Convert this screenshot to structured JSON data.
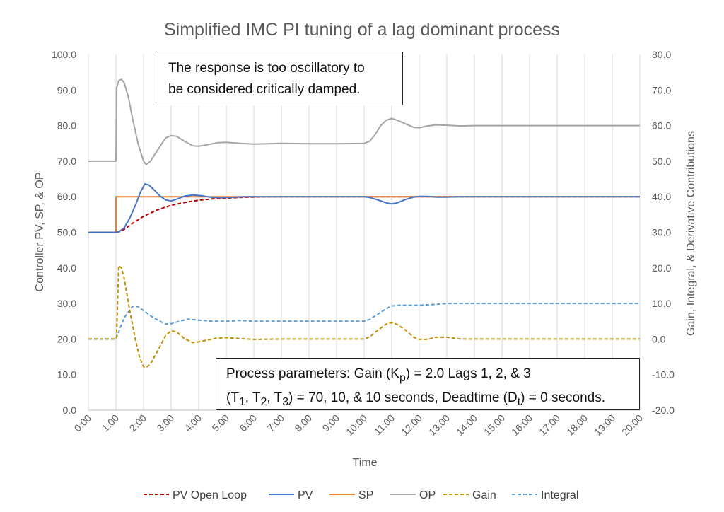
{
  "chart_data": {
    "type": "line",
    "title": "Simplified IMC PI tuning of a lag dominant process",
    "xlabel": "Time",
    "ylabel_left": "Controller PV, SP, & OP",
    "ylabel_right": "Gain, Integral, & Derivative Contributions",
    "xlim": [
      0,
      20
    ],
    "ylim_left": [
      0,
      100
    ],
    "ylim_right": [
      -20,
      80
    ],
    "grid": "vertical",
    "legend_position": "bottom",
    "x_ticks": [
      "0:00",
      "1:00",
      "2:00",
      "3:00",
      "4:00",
      "5:00",
      "6:00",
      "7:00",
      "8:00",
      "9:00",
      "10:00",
      "11:00",
      "12:00",
      "13:00",
      "14:00",
      "15:00",
      "16:00",
      "17:00",
      "18:00",
      "19:00",
      "20:00"
    ],
    "y_left_ticks": [
      "0.0",
      "10.0",
      "20.0",
      "30.0",
      "40.0",
      "50.0",
      "60.0",
      "70.0",
      "80.0",
      "90.0",
      "100.0"
    ],
    "y_right_ticks": [
      "-20.0",
      "-10.0",
      "0.0",
      "10.0",
      "20.0",
      "30.0",
      "40.0",
      "50.0",
      "60.0",
      "70.0",
      "80.0"
    ],
    "series": [
      {
        "name": "PV Open Loop",
        "axis": "left",
        "color": "#c00000",
        "dash": true,
        "x": [
          0,
          1,
          1.1,
          1.3,
          1.6,
          2,
          2.5,
          3,
          3.5,
          4,
          4.5,
          5,
          5.5,
          6,
          7,
          20
        ],
        "y": [
          50,
          50,
          50.1,
          50.8,
          52.5,
          54.5,
          56.3,
          57.6,
          58.4,
          59,
          59.4,
          59.6,
          59.8,
          59.9,
          60,
          60
        ]
      },
      {
        "name": "PV",
        "axis": "left",
        "color": "#4472c4",
        "dash": false,
        "x": [
          0,
          1,
          1.1,
          1.3,
          1.5,
          1.7,
          1.9,
          2.05,
          2.2,
          2.4,
          2.6,
          2.8,
          3,
          3.2,
          3.5,
          3.8,
          4.1,
          4.4,
          4.8,
          5.3,
          5.8,
          6.3,
          7,
          10,
          10.2,
          10.5,
          10.8,
          11,
          11.2,
          11.5,
          11.8,
          12,
          12.3,
          12.6,
          13,
          13.5,
          14,
          20
        ],
        "y": [
          50,
          50,
          50.1,
          51.3,
          54,
          57.5,
          61.5,
          63.6,
          63.3,
          61.8,
          60.2,
          59.1,
          58.8,
          59.3,
          60.2,
          60.5,
          60.3,
          59.9,
          59.7,
          59.9,
          60,
          60,
          60,
          60,
          59.8,
          59.1,
          58.3,
          58,
          58.3,
          59.2,
          59.9,
          60.1,
          60.1,
          59.9,
          59.9,
          60,
          60,
          60
        ]
      },
      {
        "name": "SP",
        "axis": "left",
        "color": "#ed7d31",
        "dash": false,
        "x": [
          0,
          1,
          1,
          20
        ],
        "y": [
          50,
          50,
          60,
          60
        ]
      },
      {
        "name": "OP",
        "axis": "left",
        "color": "#a5a5a5",
        "dash": false,
        "x": [
          0,
          1,
          1.02,
          1.1,
          1.2,
          1.3,
          1.45,
          1.6,
          1.8,
          2,
          2.1,
          2.25,
          2.5,
          2.8,
          3,
          3.2,
          3.5,
          3.8,
          4,
          4.3,
          4.7,
          5,
          5.5,
          6,
          7,
          8,
          9,
          10,
          10.2,
          10.4,
          10.6,
          10.8,
          11,
          11.2,
          11.5,
          11.8,
          12,
          12.3,
          12.6,
          13,
          13.5,
          14,
          20
        ],
        "y": [
          70,
          70,
          90.5,
          92.6,
          93,
          92,
          88,
          82,
          75,
          70,
          69,
          70,
          73,
          76.5,
          77.2,
          77,
          75.5,
          74.3,
          74.2,
          74.6,
          75.2,
          75.3,
          75,
          74.8,
          75,
          74.9,
          74.9,
          75,
          75.6,
          77.5,
          80,
          81.5,
          82,
          81.5,
          80.5,
          79.5,
          79.4,
          79.9,
          80.2,
          80.1,
          79.9,
          80,
          80
        ]
      },
      {
        "name": "Gain",
        "axis": "right",
        "color": "#bf9000",
        "dash": true,
        "x": [
          0,
          1,
          1.02,
          1.1,
          1.2,
          1.3,
          1.5,
          1.7,
          1.85,
          2,
          2.1,
          2.25,
          2.5,
          2.8,
          3,
          3.2,
          3.5,
          3.8,
          4,
          4.3,
          4.7,
          5,
          5.5,
          6,
          7,
          10,
          10.2,
          10.5,
          10.8,
          11,
          11.2,
          11.5,
          11.8,
          12,
          12.3,
          12.6,
          13,
          13.5,
          14,
          20
        ],
        "y": [
          0,
          0,
          0.5,
          20.6,
          20,
          17,
          8,
          0,
          -5,
          -7.8,
          -8,
          -7,
          -3.5,
          1,
          2.3,
          2,
          0,
          -1,
          -0.8,
          -0.3,
          0.3,
          0.4,
          0.1,
          -0.1,
          0,
          0,
          0.6,
          2.5,
          4.2,
          4.6,
          4.1,
          2.5,
          0.5,
          -0.1,
          -0.1,
          0.5,
          0.5,
          0,
          0,
          0
        ]
      },
      {
        "name": "Integral",
        "axis": "right",
        "color": "#5b9bd5",
        "dash": true,
        "x": [
          0,
          1,
          1.05,
          1.3,
          1.6,
          1.8,
          2,
          2.3,
          2.6,
          2.8,
          3,
          3.3,
          3.6,
          4,
          4.5,
          5,
          5.5,
          6,
          7,
          10,
          10.2,
          10.5,
          10.8,
          11,
          11.3,
          11.7,
          12,
          12.5,
          13,
          13.5,
          20
        ],
        "y": [
          0,
          0,
          1,
          6,
          9.2,
          9.1,
          8,
          6.3,
          5,
          4.2,
          4.3,
          5,
          5.6,
          5.3,
          5,
          5,
          5.2,
          5,
          5,
          5,
          5.5,
          7,
          8.5,
          9.3,
          9.5,
          9.5,
          9.5,
          9.7,
          10,
          10,
          10
        ]
      }
    ]
  },
  "annotations": {
    "top_line1": "The response is too oscillatory to",
    "top_line2": "be considered critically damped.",
    "bottom_line1": "Process parameters:  Gain (K",
    "bottom_p_sub": "p",
    "bottom_line1_rest": ") = 2.0 Lags 1, 2, & 3",
    "bottom_line2_a": "(T",
    "bottom_sub1": "1",
    "bottom_comma1": ", T",
    "bottom_sub2": "2",
    "bottom_comma2": ", T",
    "bottom_sub3": "3",
    "bottom_line2_b": ") = 70, 10, & 10 seconds, Deadtime (D",
    "bottom_sub_t": "t",
    "bottom_line2_c": ") = 0 seconds."
  }
}
